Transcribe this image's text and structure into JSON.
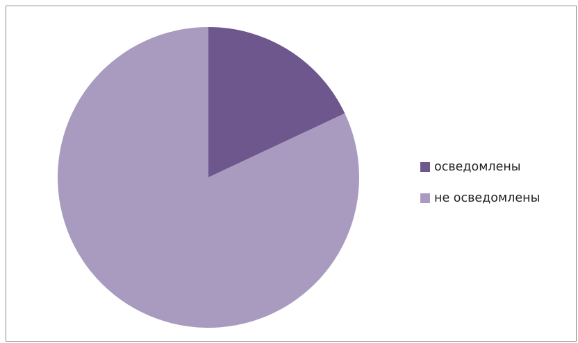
{
  "chart_data": {
    "type": "pie",
    "categories": [
      "осведомлены",
      "не осведомлены"
    ],
    "values": [
      18,
      82
    ],
    "colors": [
      "#6e578d",
      "#a99bbf"
    ],
    "title": "",
    "legend": {
      "position": "right",
      "items": [
        {
          "label": "осведомлены",
          "color": "#6e578d"
        },
        {
          "label": "не осведомлены",
          "color": "#a99bbf"
        }
      ]
    }
  }
}
